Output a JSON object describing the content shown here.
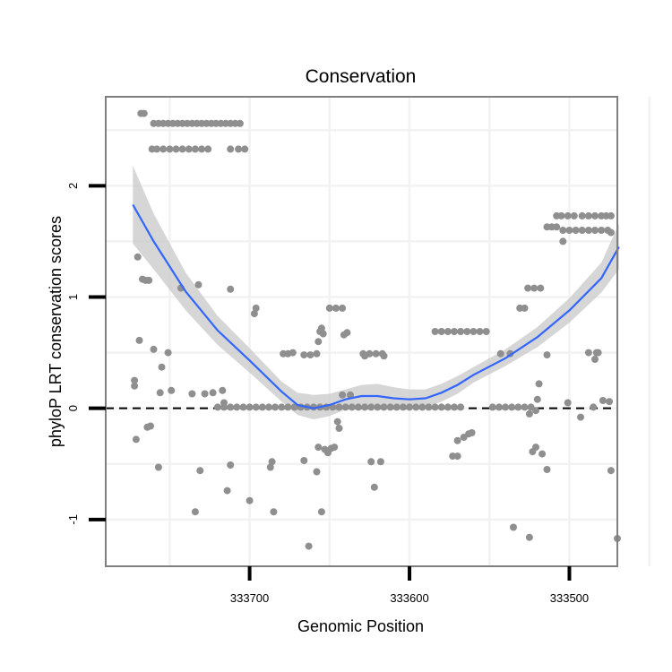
{
  "chart_data": {
    "type": "scatter",
    "title": "Conservation",
    "xlabel": "Genomic Position",
    "ylabel": "phyloP LRT conservation scores",
    "x_reversed": true,
    "xlim": [
      333470,
      333790
    ],
    "ylim": [
      -1.42,
      2.8
    ],
    "x_ticks": [
      333700,
      333600,
      333500
    ],
    "x_tick_labels": [
      "333700",
      "333600",
      "333500"
    ],
    "y_ticks": [
      -1,
      0,
      1,
      2
    ],
    "y_tick_labels": [
      "-1",
      "0",
      "1",
      "2"
    ],
    "grid": true,
    "reference_line": {
      "y": 0,
      "style": "dashed"
    },
    "colors": {
      "points": "#8f8f8f",
      "smooth": "#3366ff",
      "ribbon": "#c8c8c8",
      "panel_border": "#7f7f7f",
      "grid": "#f2f2f2"
    },
    "series": [
      {
        "name": "scores",
        "kind": "points",
        "points": [
          [
            333772,
            0.2
          ],
          [
            333772,
            0.25
          ],
          [
            333771,
            -0.28
          ],
          [
            333770,
            1.36
          ],
          [
            333769,
            0.61
          ],
          [
            333768,
            2.65
          ],
          [
            333766,
            2.65
          ],
          [
            333767,
            1.16
          ],
          [
            333765,
            1.15
          ],
          [
            333764,
            -0.17
          ],
          [
            333762,
            -0.16
          ],
          [
            333763,
            1.15
          ],
          [
            333760,
            2.56
          ],
          [
            333757,
            2.56
          ],
          [
            333754,
            2.56
          ],
          [
            333751,
            2.56
          ],
          [
            333748,
            2.56
          ],
          [
            333745,
            2.56
          ],
          [
            333742,
            2.56
          ],
          [
            333739,
            2.56
          ],
          [
            333736,
            2.56
          ],
          [
            333733,
            2.56
          ],
          [
            333730,
            2.56
          ],
          [
            333727,
            2.56
          ],
          [
            333724,
            2.56
          ],
          [
            333721,
            2.56
          ],
          [
            333718,
            2.56
          ],
          [
            333715,
            2.56
          ],
          [
            333712,
            2.56
          ],
          [
            333709,
            2.56
          ],
          [
            333706,
            2.56
          ],
          [
            333761,
            2.33
          ],
          [
            333758,
            2.33
          ],
          [
            333754,
            2.33
          ],
          [
            333750,
            2.33
          ],
          [
            333746,
            2.33
          ],
          [
            333742,
            2.33
          ],
          [
            333738,
            2.33
          ],
          [
            333734,
            2.33
          ],
          [
            333730,
            2.33
          ],
          [
            333726,
            2.33
          ],
          [
            333712,
            2.33
          ],
          [
            333707,
            2.33
          ],
          [
            333703,
            2.33
          ],
          [
            333760,
            0.53
          ],
          [
            333757,
            -0.53
          ],
          [
            333756,
            0.14
          ],
          [
            333755,
            0.37
          ],
          [
            333751,
            0.5
          ],
          [
            333749,
            0.16
          ],
          [
            333743,
            1.08
          ],
          [
            333736,
            0.13
          ],
          [
            333734,
            -0.93
          ],
          [
            333732,
            1.11
          ],
          [
            333731,
            -0.56
          ],
          [
            333728,
            0.13
          ],
          [
            333723,
            0.14
          ],
          [
            333717,
            0.16
          ],
          [
            333716,
            0.05
          ],
          [
            333714,
            -0.74
          ],
          [
            333712,
            1.07
          ],
          [
            333712,
            -0.51
          ],
          [
            333700,
            -0.83
          ],
          [
            333697,
            0.85
          ],
          [
            333696,
            0.9
          ],
          [
            333685,
            -0.93
          ],
          [
            333687,
            -0.53
          ],
          [
            333686,
            -0.48
          ],
          [
            333720,
            0.01
          ],
          [
            333716,
            0.01
          ],
          [
            333712,
            0.01
          ],
          [
            333708,
            0.01
          ],
          [
            333704,
            0.01
          ],
          [
            333700,
            0.01
          ],
          [
            333696,
            0.01
          ],
          [
            333692,
            0.01
          ],
          [
            333688,
            0.01
          ],
          [
            333684,
            0.01
          ],
          [
            333680,
            0.01
          ],
          [
            333676,
            0.01
          ],
          [
            333672,
            0.01
          ],
          [
            333668,
            0.01
          ],
          [
            333664,
            0.01
          ],
          [
            333660,
            0.01
          ],
          [
            333656,
            0.01
          ],
          [
            333652,
            0.01
          ],
          [
            333648,
            0.01
          ],
          [
            333644,
            0.01
          ],
          [
            333640,
            0.01
          ],
          [
            333636,
            0.01
          ],
          [
            333632,
            0.01
          ],
          [
            333628,
            0.01
          ],
          [
            333624,
            0.01
          ],
          [
            333620,
            0.01
          ],
          [
            333616,
            0.01
          ],
          [
            333612,
            0.01
          ],
          [
            333608,
            0.01
          ],
          [
            333604,
            0.01
          ],
          [
            333600,
            0.01
          ],
          [
            333596,
            0.01
          ],
          [
            333592,
            0.01
          ],
          [
            333588,
            0.01
          ],
          [
            333584,
            0.01
          ],
          [
            333580,
            0.01
          ],
          [
            333576,
            0.01
          ],
          [
            333572,
            0.01
          ],
          [
            333568,
            0.01
          ],
          [
            333548,
            0.01
          ],
          [
            333544,
            0.01
          ],
          [
            333540,
            0.01
          ],
          [
            333536,
            0.01
          ],
          [
            333532,
            0.01
          ],
          [
            333528,
            0.01
          ],
          [
            333524,
            0.01
          ],
          [
            333679,
            0.49
          ],
          [
            333676,
            0.49
          ],
          [
            333673,
            0.5
          ],
          [
            333666,
            0.48
          ],
          [
            333662,
            0.48
          ],
          [
            333658,
            0.49
          ],
          [
            333657,
            0.6
          ],
          [
            333656,
            0.69
          ],
          [
            333655,
            0.72
          ],
          [
            333654,
            0.67
          ],
          [
            333666,
            -0.47
          ],
          [
            333650,
            0.9
          ],
          [
            333646,
            0.9
          ],
          [
            333642,
            0.9
          ],
          [
            333639,
            0.68
          ],
          [
            333641,
            0.66
          ],
          [
            333629,
            0.49
          ],
          [
            333625,
            0.49
          ],
          [
            333621,
            0.49
          ],
          [
            333617,
            0.49
          ],
          [
            333628,
            0.47
          ],
          [
            333616,
            0.47
          ],
          [
            333663,
            -1.24
          ],
          [
            333658,
            -0.57
          ],
          [
            333657,
            -0.35
          ],
          [
            333655,
            -0.93
          ],
          [
            333653,
            -0.37
          ],
          [
            333651,
            -0.4
          ],
          [
            333649,
            -0.36
          ],
          [
            333647,
            -0.35
          ],
          [
            333645,
            -0.12
          ],
          [
            333644,
            -0.18
          ],
          [
            333642,
            0.12
          ],
          [
            333637,
            0.12
          ],
          [
            333624,
            -0.48
          ],
          [
            333622,
            -0.71
          ],
          [
            333618,
            -0.48
          ],
          [
            333584,
            0.69
          ],
          [
            333580,
            0.69
          ],
          [
            333576,
            0.69
          ],
          [
            333572,
            0.69
          ],
          [
            333568,
            0.69
          ],
          [
            333564,
            0.69
          ],
          [
            333560,
            0.69
          ],
          [
            333556,
            0.69
          ],
          [
            333552,
            0.69
          ],
          [
            333573,
            -0.43
          ],
          [
            333570,
            -0.43
          ],
          [
            333570,
            -0.29
          ],
          [
            333566,
            -0.26
          ],
          [
            333563,
            -0.23
          ],
          [
            333561,
            -0.22
          ],
          [
            333543,
            0.49
          ],
          [
            333537,
            0.49
          ],
          [
            333531,
            0.9
          ],
          [
            333528,
            0.9
          ],
          [
            333526,
            1.08
          ],
          [
            333522,
            1.08
          ],
          [
            333518,
            1.08
          ],
          [
            333520,
            0.08
          ],
          [
            333519,
            0.22
          ],
          [
            333514,
            0.48
          ],
          [
            333523,
            -0.39
          ],
          [
            333521,
            -0.35
          ],
          [
            333517,
            -0.41
          ],
          [
            333514,
            -0.55
          ],
          [
            333525,
            -0.05
          ],
          [
            333521,
            -0.02
          ],
          [
            333535,
            -1.07
          ],
          [
            333525,
            -1.16
          ],
          [
            333514,
            1.63
          ],
          [
            333511,
            1.63
          ],
          [
            333508,
            1.63
          ],
          [
            333504,
            1.6
          ],
          [
            333500,
            1.6
          ],
          [
            333496,
            1.6
          ],
          [
            333492,
            1.6
          ],
          [
            333488,
            1.6
          ],
          [
            333484,
            1.6
          ],
          [
            333480,
            1.6
          ],
          [
            333476,
            1.6
          ],
          [
            333474,
            1.58
          ],
          [
            333508,
            1.73
          ],
          [
            333505,
            1.73
          ],
          [
            333501,
            1.73
          ],
          [
            333497,
            1.73
          ],
          [
            333492,
            1.73
          ],
          [
            333488,
            1.73
          ],
          [
            333484,
            1.73
          ],
          [
            333480,
            1.73
          ],
          [
            333477,
            1.73
          ],
          [
            333474,
            1.73
          ],
          [
            333504,
            1.5
          ],
          [
            333501,
            0.05
          ],
          [
            333493,
            -0.08
          ],
          [
            333488,
            0.5
          ],
          [
            333485,
            0.01
          ],
          [
            333484,
            0.44
          ],
          [
            333483,
            0.5
          ],
          [
            333482,
            0.5
          ],
          [
            333479,
            0.07
          ],
          [
            333475,
            0.06
          ],
          [
            333474,
            -0.56
          ],
          [
            333470,
            -1.17
          ]
        ]
      },
      {
        "name": "loess smooth",
        "kind": "line",
        "points": [
          [
            333773,
            1.83
          ],
          [
            333760,
            1.5
          ],
          [
            333740,
            1.05
          ],
          [
            333720,
            0.7
          ],
          [
            333700,
            0.43
          ],
          [
            333680,
            0.15
          ],
          [
            333670,
            0.03
          ],
          [
            333660,
            0.0
          ],
          [
            333650,
            0.03
          ],
          [
            333640,
            0.08
          ],
          [
            333630,
            0.11
          ],
          [
            333620,
            0.11
          ],
          [
            333610,
            0.09
          ],
          [
            333600,
            0.08
          ],
          [
            333590,
            0.09
          ],
          [
            333580,
            0.14
          ],
          [
            333570,
            0.21
          ],
          [
            333560,
            0.3
          ],
          [
            333540,
            0.45
          ],
          [
            333520,
            0.64
          ],
          [
            333500,
            0.88
          ],
          [
            333480,
            1.17
          ],
          [
            333469,
            1.45
          ]
        ]
      },
      {
        "name": "confidence band",
        "kind": "band",
        "upper": [
          2.18,
          1.75,
          1.22,
          0.83,
          0.54,
          0.24,
          0.14,
          0.12,
          0.13,
          0.17,
          0.21,
          0.22,
          0.19,
          0.17,
          0.17,
          0.22,
          0.29,
          0.37,
          0.53,
          0.73,
          0.99,
          1.31,
          1.66
        ],
        "lower": [
          1.48,
          1.25,
          0.88,
          0.57,
          0.32,
          0.06,
          -0.06,
          -0.1,
          -0.07,
          -0.01,
          0.02,
          0.01,
          -0.01,
          -0.01,
          0.01,
          0.06,
          0.13,
          0.23,
          0.38,
          0.55,
          0.77,
          1.04,
          1.25
        ]
      }
    ]
  }
}
